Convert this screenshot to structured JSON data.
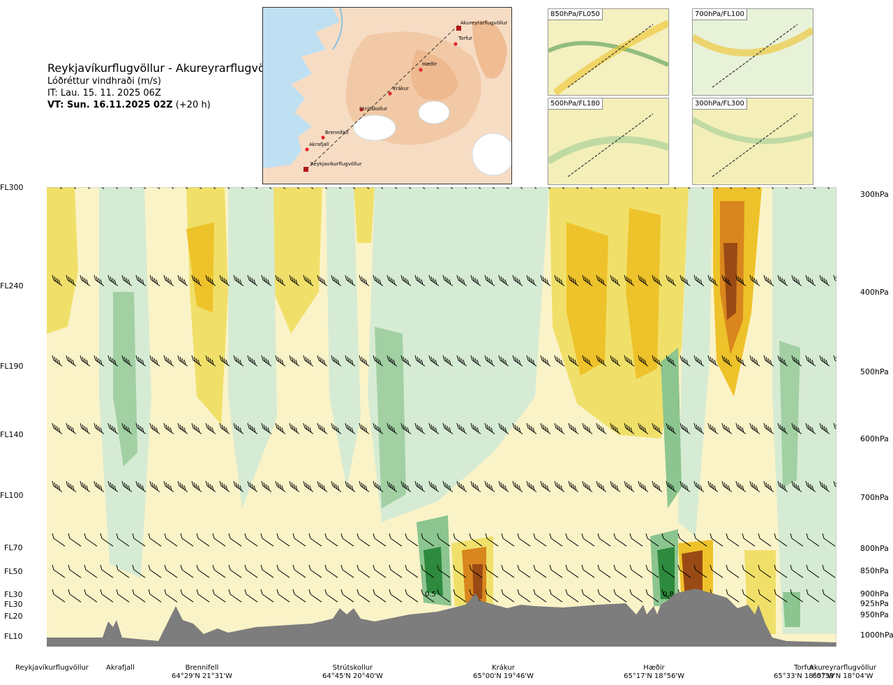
{
  "header": {
    "route": "Reykjavíkurflugvöllur - Akureyrarflugvöllur",
    "product": "Lóðréttur vindhraði (m/s)",
    "issue_time": "IT: Lau. 15. 11. 2025 06Z",
    "valid_time": "VT: Sun. 16.11.2025 02Z",
    "lead": "(+20 h)"
  },
  "map": {
    "points": [
      "Reykjavíkurflugvöllur",
      "Akrafjall",
      "Brennifell",
      "Strútskollur",
      "Krákur",
      "Hæðir",
      "Torfur",
      "Akureyrarflugvöllur"
    ]
  },
  "mini_maps": [
    {
      "label": "850hPa/FL050"
    },
    {
      "label": "700hPa/FL100"
    },
    {
      "label": "500hPa/FL180"
    },
    {
      "label": "300hPa/FL300"
    }
  ],
  "flight_levels": [
    "FL300",
    "FL240",
    "FL190",
    "FL140",
    "FL100",
    "FL70",
    "FL50",
    "FL30",
    "FL30",
    "FL20",
    "FL10"
  ],
  "pressure_levels": [
    "300hPa",
    "400hPa",
    "500hPa",
    "600hPa",
    "700hPa",
    "800hPa",
    "850hPa",
    "900hPa",
    "925hPa",
    "950hPa",
    "1000hPa"
  ],
  "locations": [
    {
      "name": "Reykjavíkurflugvöllur",
      "coord": ""
    },
    {
      "name": "Akrafjall",
      "coord": ""
    },
    {
      "name": "Brennifell",
      "coord": "64°29'N 21°31'W"
    },
    {
      "name": "Strútskollur",
      "coord": "64°45'N 20°40'W"
    },
    {
      "name": "Krákur",
      "coord": "65°00'N 19°46'W"
    },
    {
      "name": "Hæðir",
      "coord": "65°17'N 18°56'W"
    },
    {
      "name": "Torfur",
      "coord": "65°33'N 18°07'W"
    },
    {
      "name": "Akureyrarflugvöllur",
      "coord": "65°39'N 18°04'W"
    }
  ],
  "chart_data": {
    "type": "heatmap",
    "title": "Reykjavíkurflugvöllur - Akureyrarflugvöllur",
    "subtitle": "Lóðréttur vindhraði (m/s)",
    "xlabel": "",
    "ylabel": "",
    "y_axis_left": [
      "FL300",
      "FL240",
      "FL190",
      "FL140",
      "FL100",
      "FL70",
      "FL50",
      "FL30",
      "FL30",
      "FL20",
      "FL10"
    ],
    "y_axis_right": [
      "300hPa",
      "400hPa",
      "500hPa",
      "600hPa",
      "700hPa",
      "800hPa",
      "850hPa",
      "900hPa",
      "925hPa",
      "950hPa",
      "1000hPa"
    ],
    "x_waypoints": [
      "Reykjavíkurflugvöllur",
      "Akrafjall",
      "Brennifell",
      "Strútskollur",
      "Krákur",
      "Hæðir",
      "Torfur",
      "Akureyrarflugvöllur"
    ],
    "contour_labels": [
      "0.5",
      "0.8"
    ],
    "colors": {
      "descent_strong": "#2e8a3e",
      "descent_mid": "#8cc58f",
      "descent_weak": "#d6ebd3",
      "neutral": "#fbf3c8",
      "ascent_weak": "#f0e06a",
      "ascent_mid": "#eec22a",
      "ascent_strong": "#d9861e",
      "ascent_max": "#9a4a14",
      "terrain": "#7d7d7d"
    }
  }
}
